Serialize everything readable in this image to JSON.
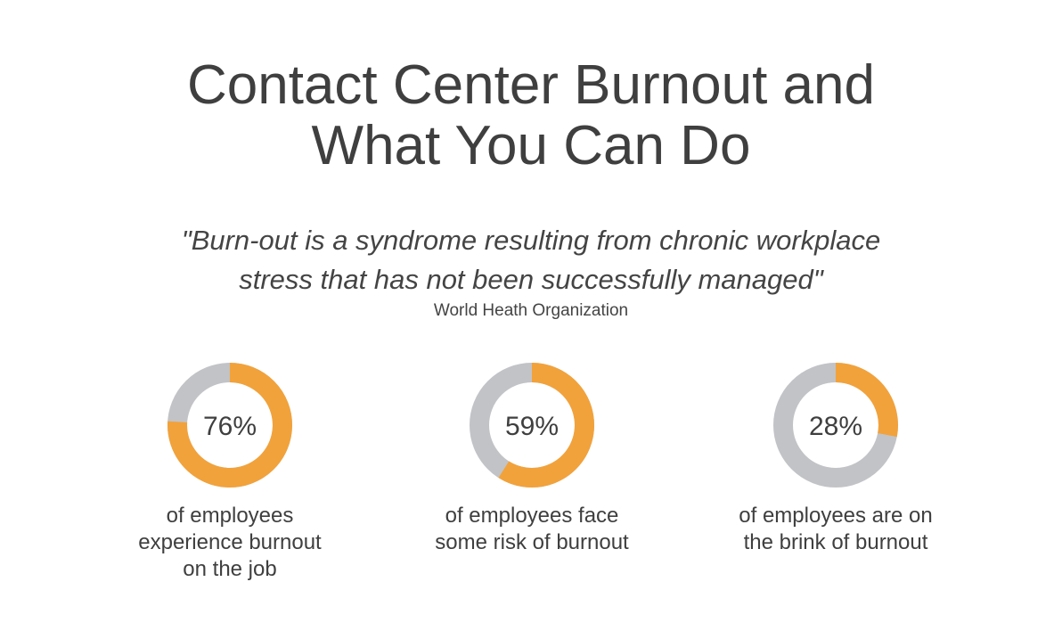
{
  "title": {
    "line1": "Contact Center Burnout and",
    "line2": "What You Can Do"
  },
  "quote": {
    "line1": "\"Burn-out is a syndrome resulting from chronic workplace",
    "line2": "stress that has not been successfully managed\"",
    "source": "World Heath Organization"
  },
  "colors": {
    "filled": "#F2A23A",
    "track": "#C2C3C6"
  },
  "chart_data": [
    {
      "type": "pie",
      "value": 76,
      "label": "76%",
      "caption": [
        "of employees",
        "experience burnout",
        "on the job"
      ]
    },
    {
      "type": "pie",
      "value": 59,
      "label": "59%",
      "caption": [
        "of employees face",
        "some risk of burnout"
      ]
    },
    {
      "type": "pie",
      "value": 28,
      "label": "28%",
      "caption": [
        "of employees are on",
        "the brink of burnout"
      ]
    }
  ]
}
